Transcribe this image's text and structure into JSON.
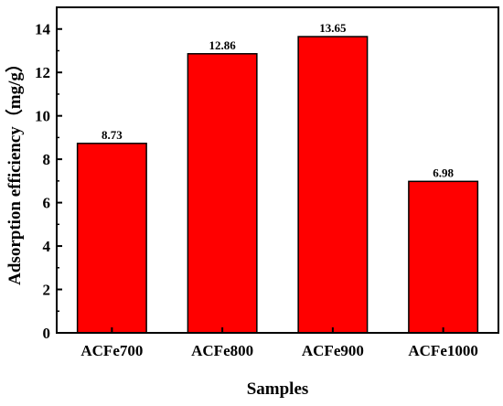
{
  "chart_data": {
    "type": "bar",
    "categories": [
      "ACFe700",
      "ACFe800",
      "ACFe900",
      "ACFe1000"
    ],
    "values": [
      8.73,
      12.86,
      13.65,
      6.98
    ],
    "value_labels": [
      "8.73",
      "12.86",
      "13.65",
      "6.98"
    ],
    "title": "",
    "xlabel": "Samples",
    "ylabel": "Adsorption efficiency（mg/g）",
    "ylim": [
      0,
      15
    ],
    "yticks": [
      0,
      2,
      4,
      6,
      8,
      10,
      12,
      14
    ],
    "ytick_labels": [
      "0",
      "2",
      "4",
      "6",
      "8",
      "10",
      "12",
      "14"
    ],
    "grid": false,
    "legend": "none",
    "colors": {
      "bar_fill": "#ff0000",
      "bar_stroke": "#000000",
      "axis": "#000000"
    }
  }
}
